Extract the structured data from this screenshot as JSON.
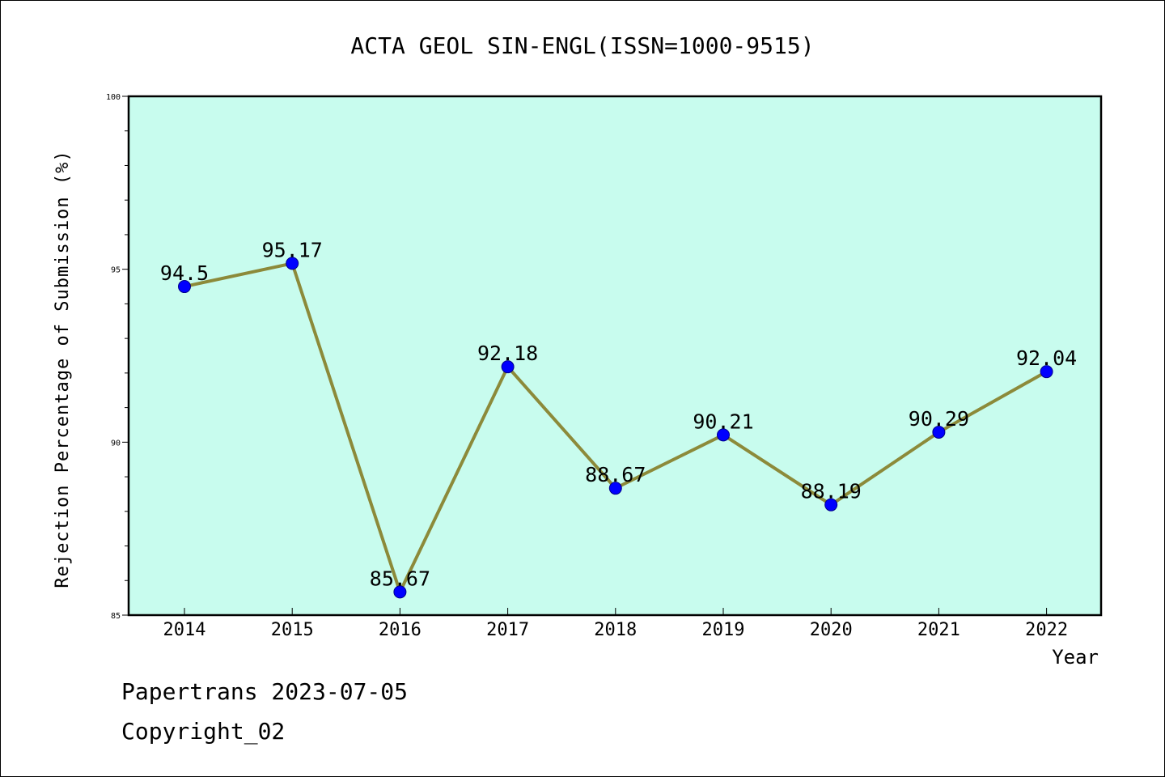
{
  "chart_data": {
    "type": "line",
    "title": "ACTA GEOL SIN-ENGL(ISSN=1000-9515)",
    "xlabel": "Year",
    "ylabel": "Rejection Percentage of Submission (%)",
    "categories": [
      "2014",
      "2015",
      "2016",
      "2017",
      "2018",
      "2019",
      "2020",
      "2021",
      "2022"
    ],
    "series": [
      {
        "values": [
          94.5,
          95.17,
          85.67,
          92.18,
          88.67,
          90.21,
          88.19,
          90.29,
          92.04
        ],
        "labels": [
          "94.5",
          "95.17",
          "85.67",
          "92.18",
          "88.67",
          "90.21",
          "88.19",
          "90.29",
          "92.04"
        ],
        "line_color": "#8c8a3a",
        "marker_color": "#0000ff"
      }
    ],
    "ylim": [
      85,
      100
    ],
    "yticks": [
      "85",
      "90",
      "95",
      "100"
    ],
    "plot_background": "#c8fcee",
    "grid": false,
    "legend": "none"
  },
  "footer": {
    "line1": "Papertrans 2023-07-05",
    "line2": "Copyright_02"
  }
}
